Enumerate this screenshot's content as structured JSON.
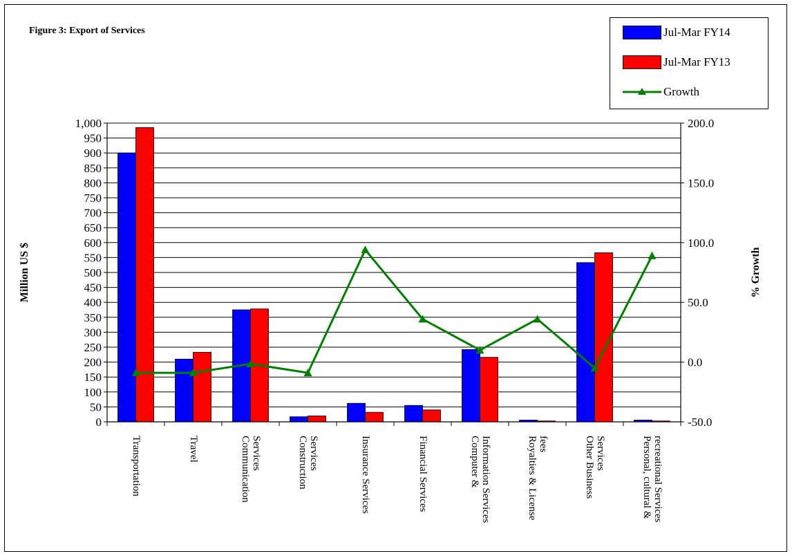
{
  "chart_data": {
    "type": "bar",
    "title": "Figure 3: Export of Services",
    "xlabel": "",
    "ylabel": "Million US $",
    "y2label": "% Growth",
    "ylim": [
      0,
      1000
    ],
    "y2lim": [
      -50,
      200
    ],
    "grid": true,
    "legend_position": "top-right",
    "categories": [
      [
        "Transportation"
      ],
      [
        "Travel"
      ],
      [
        "Communication",
        "Services"
      ],
      [
        "Construction",
        "Services"
      ],
      [
        "Insurance Services"
      ],
      [
        "Financial Services"
      ],
      [
        "Computer &",
        "Information Services"
      ],
      [
        "Royalties & License",
        "fees"
      ],
      [
        "Other Business",
        "Services"
      ],
      [
        "Personal, cultural &",
        "recreational Services"
      ]
    ],
    "series": [
      {
        "name": "Jul-Mar FY14",
        "type": "bar",
        "color": "#0000ff",
        "values": [
          900,
          210,
          375,
          17,
          62,
          55,
          242,
          6,
          533,
          6
        ]
      },
      {
        "name": "Jul-Mar FY13",
        "type": "bar",
        "color": "#ff0000",
        "values": [
          985,
          233,
          378,
          20,
          32,
          40,
          216,
          3,
          566,
          3
        ]
      },
      {
        "name": "Growth",
        "type": "line",
        "axis": "right",
        "color": "#008000",
        "values": [
          -9.0,
          -9.0,
          -1.5,
          -9.0,
          94.0,
          36.0,
          10.0,
          36.0,
          -5.0,
          89.0
        ]
      }
    ],
    "y_ticks": [
      "0",
      "50",
      "100",
      "150",
      "200",
      "250",
      "300",
      "350",
      "400",
      "450",
      "500",
      "550",
      "600",
      "650",
      "700",
      "750",
      "800",
      "850",
      "900",
      "950",
      "1,000"
    ],
    "y2_ticks": [
      "-50.0",
      "0.0",
      "50.0",
      "100.0",
      "150.0",
      "200.0"
    ]
  }
}
